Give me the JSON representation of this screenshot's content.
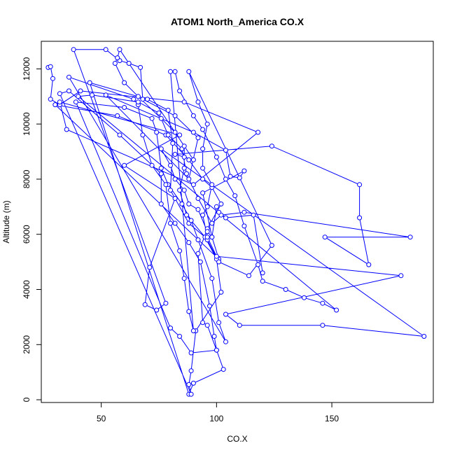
{
  "chart_data": {
    "type": "line",
    "title": "ATOM1 North_America CO.X",
    "xlabel": "CO.X",
    "ylabel": "Altitude (m)",
    "xlim": [
      24,
      194
    ],
    "ylim": [
      -100,
      13000
    ],
    "x_ticks": [
      50,
      100,
      150
    ],
    "x_tick_labels": [
      "50",
      "100",
      "150"
    ],
    "y_ticks": [
      0,
      2000,
      4000,
      6000,
      8000,
      10000,
      12000
    ],
    "y_tick_labels": [
      "0",
      "2000",
      "4000",
      "6000",
      "8000",
      "10000",
      "12000"
    ],
    "marker": "open-circle",
    "series_color": "#0000ff",
    "grid": false,
    "legend": "none",
    "series": [
      {
        "points": [
          [
            27,
            12050
          ],
          [
            28,
            12080
          ],
          [
            29,
            11650
          ],
          [
            28,
            10900
          ],
          [
            32,
            10700
          ],
          [
            41,
            11200
          ],
          [
            86,
            10800
          ],
          [
            118,
            9700
          ],
          [
            90,
            7800
          ],
          [
            35,
            9800
          ],
          [
            32,
            10800
          ],
          [
            84,
            9600
          ],
          [
            60,
            8500
          ],
          [
            82,
            7300
          ],
          [
            71,
            4800
          ],
          [
            69,
            3450
          ],
          [
            74,
            3250
          ],
          [
            78,
            3500
          ],
          [
            38,
            12700
          ],
          [
            52,
            12700
          ],
          [
            58,
            12300
          ],
          [
            62,
            12200
          ],
          [
            67,
            12050
          ],
          [
            68,
            10900
          ],
          [
            82,
            10300
          ],
          [
            92,
            9500
          ],
          [
            88,
            8000
          ],
          [
            52,
            11050
          ],
          [
            90,
            9700
          ],
          [
            104,
            9050
          ],
          [
            106,
            8100
          ],
          [
            110,
            8050
          ],
          [
            112,
            8300
          ],
          [
            94,
            7500
          ],
          [
            98,
            5900
          ],
          [
            101,
            5100
          ],
          [
            30,
            10700
          ],
          [
            57,
            10300
          ],
          [
            78,
            9600
          ],
          [
            88,
            8700
          ],
          [
            94,
            8000
          ],
          [
            98,
            7700
          ],
          [
            102,
            7100
          ],
          [
            96,
            6200
          ],
          [
            92,
            5300
          ],
          [
            94,
            2800
          ],
          [
            96,
            2700
          ],
          [
            100,
            1800
          ],
          [
            103,
            1100
          ],
          [
            90,
            600
          ],
          [
            88,
            200
          ],
          [
            45,
            11500
          ],
          [
            70,
            10900
          ],
          [
            79,
            10500
          ],
          [
            81,
            9300
          ],
          [
            80,
            7600
          ],
          [
            88,
            6400
          ],
          [
            95,
            5900
          ],
          [
            100,
            5100
          ],
          [
            102,
            3900
          ],
          [
            91,
            2500
          ],
          [
            89,
            1050
          ],
          [
            88,
            550
          ],
          [
            89,
            200
          ],
          [
            32,
            11100
          ],
          [
            36,
            11200
          ],
          [
            58,
            9600
          ],
          [
            76,
            8200
          ],
          [
            76,
            7100
          ],
          [
            82,
            6400
          ],
          [
            88,
            5700
          ],
          [
            93,
            5000
          ],
          [
            97,
            3400
          ],
          [
            99,
            2300
          ],
          [
            100,
            1800
          ],
          [
            89,
            1700
          ],
          [
            84,
            2300
          ],
          [
            80,
            2600
          ],
          [
            39,
            10800
          ],
          [
            60,
            10600
          ],
          [
            72,
            10200
          ],
          [
            74,
            9700
          ],
          [
            76,
            8400
          ],
          [
            79,
            7800
          ],
          [
            85,
            7100
          ],
          [
            89,
            6500
          ],
          [
            92,
            5800
          ],
          [
            98,
            4400
          ],
          [
            101,
            2800
          ],
          [
            104,
            2100
          ],
          [
            36,
            11700
          ],
          [
            64,
            10900
          ],
          [
            66,
            10700
          ],
          [
            68,
            9600
          ],
          [
            72,
            8500
          ],
          [
            78,
            7800
          ],
          [
            80,
            6400
          ],
          [
            84,
            5400
          ],
          [
            86,
            4400
          ],
          [
            88,
            3200
          ],
          [
            90,
            2500
          ],
          [
            80,
            11900
          ],
          [
            82,
            11900
          ],
          [
            84,
            11200
          ],
          [
            90,
            10300
          ],
          [
            94,
            9800
          ],
          [
            100,
            8800
          ],
          [
            104,
            8000
          ],
          [
            108,
            7400
          ],
          [
            112,
            6300
          ],
          [
            118,
            4900
          ],
          [
            120,
            4300
          ],
          [
            130,
            4000
          ],
          [
            138,
            3700
          ],
          [
            146,
            3500
          ],
          [
            152,
            3250
          ],
          [
            40,
            11000
          ],
          [
            46,
            11050
          ],
          [
            66,
            10800
          ],
          [
            75,
            10400
          ],
          [
            79,
            9600
          ],
          [
            85,
            9100
          ],
          [
            87,
            8200
          ],
          [
            92,
            7300
          ],
          [
            98,
            6400
          ],
          [
            102,
            6700
          ],
          [
            112,
            6800
          ],
          [
            184,
            5900
          ],
          [
            147,
            5900
          ],
          [
            166,
            4900
          ],
          [
            162,
            6600
          ],
          [
            162,
            7800
          ],
          [
            124,
            9200
          ],
          [
            82,
            8900
          ],
          [
            86,
            8800
          ],
          [
            90,
            8700
          ],
          [
            58,
            12700
          ],
          [
            57,
            12400
          ],
          [
            56,
            12200
          ],
          [
            60,
            11500
          ],
          [
            66,
            11000
          ],
          [
            76,
            10200
          ],
          [
            82,
            9700
          ],
          [
            86,
            9200
          ],
          [
            86,
            8400
          ],
          [
            84,
            7600
          ],
          [
            87,
            6700
          ],
          [
            96,
            5800
          ],
          [
            101,
            5000
          ],
          [
            114,
            4500
          ],
          [
            124,
            5600
          ],
          [
            88,
            11900
          ],
          [
            92,
            10800
          ],
          [
            96,
            10000
          ],
          [
            94,
            9100
          ],
          [
            94,
            8400
          ],
          [
            98,
            7800
          ],
          [
            96,
            7000
          ],
          [
            94,
            6700
          ],
          [
            96,
            5900
          ],
          [
            100,
            5200
          ],
          [
            180,
            4500
          ],
          [
            104,
            3100
          ],
          [
            110,
            2700
          ],
          [
            146,
            2700
          ],
          [
            190,
            2300
          ],
          [
            76,
            9100
          ],
          [
            80,
            8500
          ],
          [
            82,
            8000
          ],
          [
            86,
            7600
          ],
          [
            88,
            7100
          ],
          [
            92,
            6900
          ],
          [
            96,
            6100
          ],
          [
            98,
            5900
          ],
          [
            100,
            7000
          ],
          [
            101,
            6800
          ],
          [
            104,
            6600
          ],
          [
            116,
            6700
          ],
          [
            120,
            4600
          ]
        ]
      }
    ]
  }
}
